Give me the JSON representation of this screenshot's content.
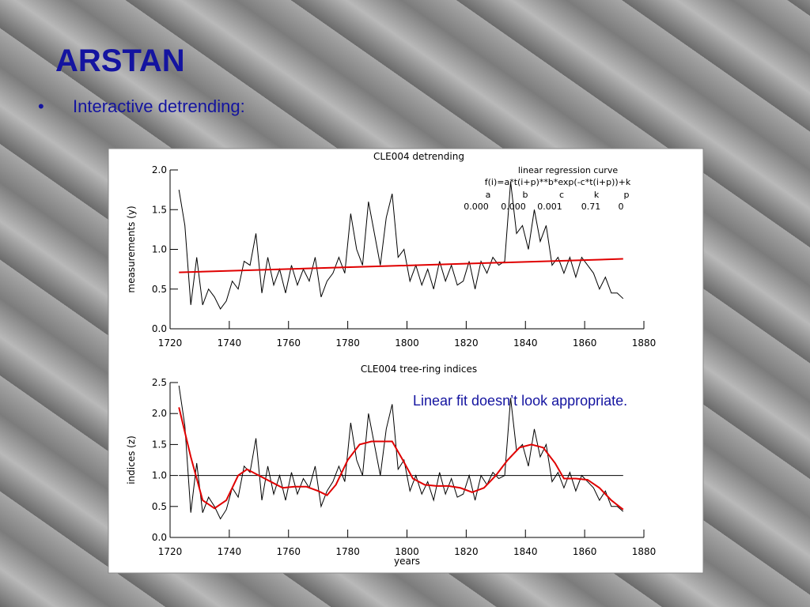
{
  "slide": {
    "title": "ARSTAN",
    "bullet": "•",
    "bullet_text": "Interactive detrending:",
    "note": "Linear fit doesn’t look appropriate."
  },
  "chart_data": [
    {
      "type": "line",
      "title": "CLE004 detrending",
      "ylabel": "measurements (y)",
      "annotations": [
        "linear regression curve",
        "f(i)=a*t(i+p)**b*exp(-c*t(i+p))+k"
      ],
      "parameters": [
        {
          "name": "a",
          "label": "0.000"
        },
        {
          "name": "b",
          "label": "0.000"
        },
        {
          "name": "c",
          "label": "0.001"
        },
        {
          "name": "k",
          "label": "0.71"
        },
        {
          "name": "p",
          "label": "0"
        }
      ],
      "xlim": [
        1720,
        1880
      ],
      "xticks": [
        1720,
        1740,
        1760,
        1780,
        1800,
        1820,
        1840,
        1860,
        1880
      ],
      "ylim": [
        0,
        2
      ],
      "yticks": [
        {
          "value": 0,
          "label": "0.0"
        },
        {
          "value": 0.5,
          "label": "0.5"
        },
        {
          "value": 1,
          "label": "1.0"
        },
        {
          "value": 1.5,
          "label": "1.5"
        },
        {
          "value": 2,
          "label": "2.0"
        }
      ],
      "series": [
        {
          "color": "#000000",
          "x": [
            1723,
            1725,
            1727,
            1729,
            1731,
            1733,
            1735,
            1737,
            1739,
            1741,
            1743,
            1745,
            1747,
            1749,
            1751,
            1753,
            1755,
            1757,
            1759,
            1761,
            1763,
            1765,
            1767,
            1769,
            1771,
            1773,
            1775,
            1777,
            1779,
            1781,
            1783,
            1785,
            1787,
            1789,
            1791,
            1793,
            1795,
            1797,
            1799,
            1801,
            1803,
            1805,
            1807,
            1809,
            1811,
            1813,
            1815,
            1817,
            1819,
            1821,
            1823,
            1825,
            1827,
            1829,
            1831,
            1833,
            1835,
            1837,
            1839,
            1841,
            1843,
            1845,
            1847,
            1849,
            1851,
            1853,
            1855,
            1857,
            1859,
            1861,
            1863,
            1865,
            1867,
            1869,
            1871,
            1873
          ],
          "values": [
            1.75,
            1.3,
            0.3,
            0.9,
            0.3,
            0.5,
            0.4,
            0.25,
            0.35,
            0.6,
            0.5,
            0.85,
            0.8,
            1.2,
            0.45,
            0.9,
            0.55,
            0.75,
            0.45,
            0.8,
            0.55,
            0.75,
            0.6,
            0.9,
            0.4,
            0.6,
            0.7,
            0.9,
            0.7,
            1.45,
            1.0,
            0.8,
            1.6,
            1.2,
            0.8,
            1.4,
            1.7,
            0.9,
            1.0,
            0.6,
            0.8,
            0.55,
            0.75,
            0.5,
            0.85,
            0.6,
            0.8,
            0.55,
            0.6,
            0.85,
            0.5,
            0.85,
            0.7,
            0.9,
            0.8,
            0.85,
            1.85,
            1.2,
            1.3,
            1.0,
            1.5,
            1.1,
            1.3,
            0.8,
            0.9,
            0.7,
            0.9,
            0.65,
            0.9,
            0.8,
            0.7,
            0.5,
            0.65,
            0.45,
            0.45,
            0.38
          ]
        },
        {
          "color": "#e00000",
          "x": [
            1723,
            1873
          ],
          "values": [
            0.71,
            0.88
          ]
        }
      ]
    },
    {
      "type": "line",
      "title": "CLE004 tree-ring indices",
      "ylabel": "indices (z)",
      "xlabel": "years",
      "xlim": [
        1720,
        1880
      ],
      "xticks": [
        1720,
        1740,
        1760,
        1780,
        1800,
        1820,
        1840,
        1860,
        1880
      ],
      "ylim": [
        0,
        2.5
      ],
      "yticks": [
        {
          "value": 0,
          "label": "0.0"
        },
        {
          "value": 0.5,
          "label": "0.5"
        },
        {
          "value": 1,
          "label": "1.0"
        },
        {
          "value": 1.5,
          "label": "1.5"
        },
        {
          "value": 2,
          "label": "2.0"
        },
        {
          "value": 2.5,
          "label": "2.5"
        }
      ],
      "hline": 1,
      "series": [
        {
          "color": "#000000",
          "x": [
            1723,
            1725,
            1727,
            1729,
            1731,
            1733,
            1735,
            1737,
            1739,
            1741,
            1743,
            1745,
            1747,
            1749,
            1751,
            1753,
            1755,
            1757,
            1759,
            1761,
            1763,
            1765,
            1767,
            1769,
            1771,
            1773,
            1775,
            1777,
            1779,
            1781,
            1783,
            1785,
            1787,
            1789,
            1791,
            1793,
            1795,
            1797,
            1799,
            1801,
            1803,
            1805,
            1807,
            1809,
            1811,
            1813,
            1815,
            1817,
            1819,
            1821,
            1823,
            1825,
            1827,
            1829,
            1831,
            1833,
            1835,
            1837,
            1839,
            1841,
            1843,
            1845,
            1847,
            1849,
            1851,
            1853,
            1855,
            1857,
            1859,
            1861,
            1863,
            1865,
            1867,
            1869,
            1871,
            1873
          ],
          "values": [
            2.45,
            1.8,
            0.4,
            1.2,
            0.4,
            0.65,
            0.5,
            0.3,
            0.45,
            0.8,
            0.65,
            1.15,
            1.05,
            1.6,
            0.6,
            1.15,
            0.7,
            1.0,
            0.6,
            1.05,
            0.7,
            0.95,
            0.8,
            1.15,
            0.5,
            0.75,
            0.9,
            1.15,
            0.9,
            1.85,
            1.25,
            1.0,
            2.0,
            1.5,
            1.0,
            1.75,
            2.15,
            1.1,
            1.25,
            0.75,
            1.0,
            0.7,
            0.9,
            0.6,
            1.05,
            0.7,
            0.95,
            0.65,
            0.7,
            1.0,
            0.6,
            1.0,
            0.85,
            1.05,
            0.95,
            1.0,
            2.25,
            1.4,
            1.5,
            1.15,
            1.75,
            1.3,
            1.5,
            0.9,
            1.05,
            0.8,
            1.05,
            0.75,
            1.0,
            0.9,
            0.8,
            0.6,
            0.75,
            0.5,
            0.5,
            0.42
          ]
        },
        {
          "color": "#e00000",
          "x": [
            1723,
            1727,
            1731,
            1735,
            1739,
            1743,
            1746,
            1750,
            1754,
            1758,
            1762,
            1766,
            1770,
            1773,
            1776,
            1780,
            1784,
            1788,
            1792,
            1795,
            1798,
            1802,
            1806,
            1810,
            1814,
            1818,
            1822,
            1826,
            1830,
            1834,
            1838,
            1842,
            1846,
            1850,
            1853,
            1857,
            1861,
            1865,
            1869,
            1873
          ],
          "values": [
            2.1,
            1.3,
            0.6,
            0.47,
            0.6,
            1.0,
            1.1,
            1.0,
            0.9,
            0.8,
            0.82,
            0.82,
            0.75,
            0.68,
            0.85,
            1.25,
            1.5,
            1.55,
            1.55,
            1.55,
            1.3,
            0.95,
            0.85,
            0.83,
            0.83,
            0.8,
            0.73,
            0.8,
            1.0,
            1.25,
            1.45,
            1.5,
            1.45,
            1.2,
            0.95,
            0.95,
            0.93,
            0.8,
            0.6,
            0.45
          ]
        }
      ]
    }
  ]
}
